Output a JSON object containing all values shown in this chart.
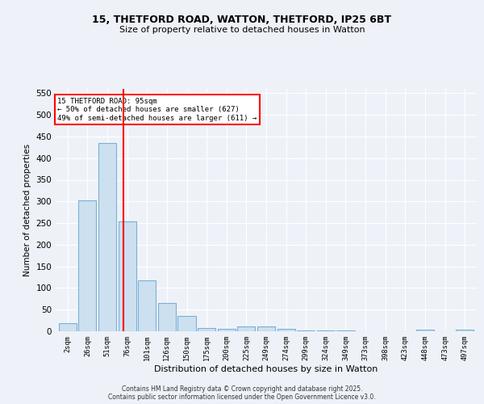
{
  "title1": "15, THETFORD ROAD, WATTON, THETFORD, IP25 6BT",
  "title2": "Size of property relative to detached houses in Watton",
  "xlabel": "Distribution of detached houses by size in Watton",
  "ylabel": "Number of detached properties",
  "bar_labels": [
    "2sqm",
    "26sqm",
    "51sqm",
    "76sqm",
    "101sqm",
    "126sqm",
    "150sqm",
    "175sqm",
    "200sqm",
    "225sqm",
    "249sqm",
    "274sqm",
    "299sqm",
    "324sqm",
    "349sqm",
    "373sqm",
    "398sqm",
    "423sqm",
    "448sqm",
    "473sqm",
    "497sqm"
  ],
  "bar_values": [
    18,
    302,
    435,
    254,
    118,
    65,
    35,
    7,
    6,
    11,
    11,
    5,
    2,
    2,
    1,
    0,
    0,
    0,
    3,
    0,
    4
  ],
  "bar_color": "#cce0f0",
  "bar_edgecolor": "#7ab0d4",
  "bg_color": "#eef2f8",
  "grid_color": "#ffffff",
  "vline_x": 2.82,
  "vline_color": "red",
  "annotation_text": "15 THETFORD ROAD: 95sqm\n← 50% of detached houses are smaller (627)\n49% of semi-detached houses are larger (611) →",
  "annotation_box_color": "white",
  "annotation_box_edgecolor": "red",
  "ylim": [
    0,
    560
  ],
  "yticks": [
    0,
    50,
    100,
    150,
    200,
    250,
    300,
    350,
    400,
    450,
    500,
    550
  ],
  "footer1": "Contains HM Land Registry data © Crown copyright and database right 2025.",
  "footer2": "Contains public sector information licensed under the Open Government Licence v3.0."
}
